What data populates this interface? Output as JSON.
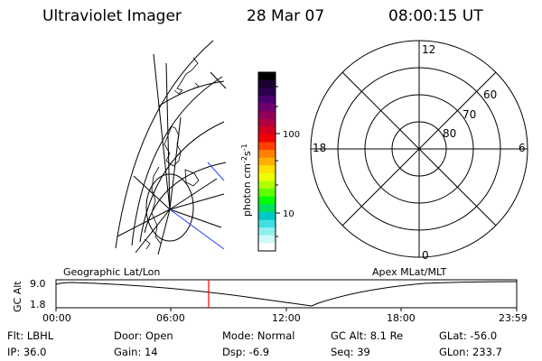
{
  "header": {
    "instrument": "Ultraviolet Imager",
    "date": "28 Mar 07",
    "time": "08:00:15 UT"
  },
  "colorbar": {
    "unit_label": "photon cm",
    "exp_minus2": "-2",
    "s_char": "s",
    "exp_minus1": "-1",
    "tick_high": "100",
    "tick_low": "10"
  },
  "polar_plot": {
    "mlt_labels": {
      "top": "12",
      "bottom": "0",
      "left": "18",
      "right": "6"
    },
    "lat_labels": [
      "60",
      "70",
      "80"
    ]
  },
  "timeline": {
    "left_title": "Geographic Lat/Lon",
    "right_title": "Apex MLat/MLT",
    "axis_label": "GC Alt",
    "y_ticks": [
      "9.0",
      "1.8"
    ],
    "x_ticks": [
      "00:00",
      "06:00",
      "12:00",
      "18:00",
      "23:59"
    ],
    "current_time_marker_color": "#ff0000"
  },
  "footer": {
    "flt": "Flt: LBHL",
    "ip": "IP: 36.0",
    "door": "Door: Open",
    "gain": "Gain: 14",
    "mode": "Mode: Normal",
    "dsp": "Dsp:    -6.9",
    "gc_alt": "GC Alt: 8.1 Re",
    "seq": "Seq: 39",
    "glat": "GLat: -56.0",
    "glon": "GLon: 233.7"
  },
  "colors": {
    "colorbar": [
      "#000000",
      "#1a0030",
      "#2a0050",
      "#4a0070",
      "#700070",
      "#90005a",
      "#b00040",
      "#d40020",
      "#f00000",
      "#ff4000",
      "#ff8000",
      "#ffb000",
      "#ffe000",
      "#f0ff00",
      "#b0ff00",
      "#60ff00",
      "#00ff00",
      "#00e060",
      "#00c8c8",
      "#40e0e0",
      "#90f0f0",
      "#d0f8f8",
      "#ffffff"
    ]
  }
}
